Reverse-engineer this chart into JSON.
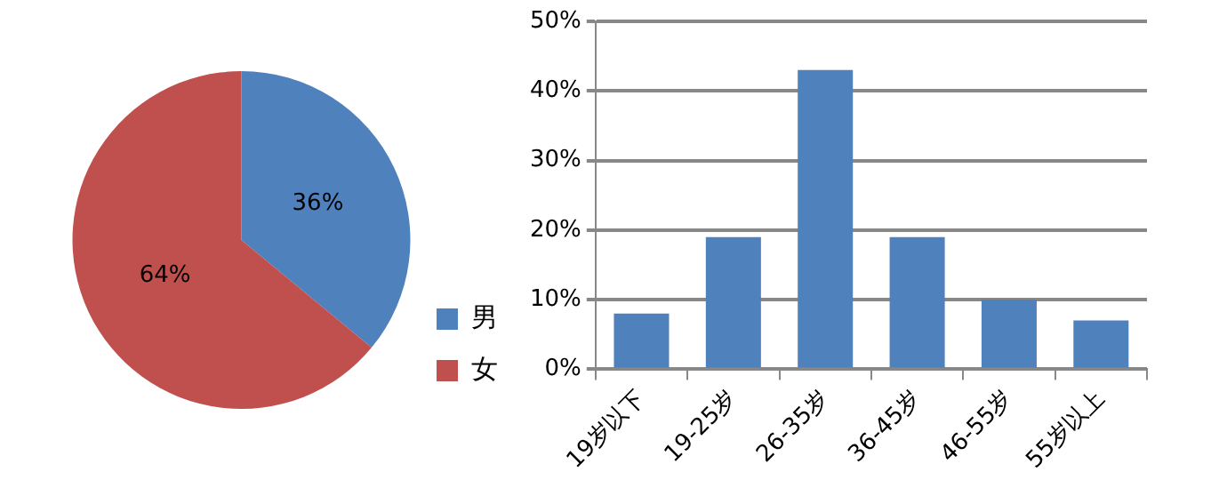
{
  "chart_data": [
    {
      "type": "pie",
      "categories": [
        "男",
        "女"
      ],
      "values": [
        36,
        64
      ],
      "colors": [
        "#4f81bd",
        "#c0504d"
      ],
      "value_labels": [
        "36%",
        "64%"
      ],
      "legend": "bottom right"
    },
    {
      "type": "bar",
      "categories": [
        "19岁以下",
        "19-25岁",
        "26-35岁",
        "36-45岁",
        "46-55岁",
        "55岁以上"
      ],
      "values": [
        8,
        19,
        43,
        19,
        10,
        7
      ],
      "color": "#4f81bd",
      "ylim": [
        0,
        50
      ],
      "yticks": [
        {
          "value": 0,
          "label": "0%"
        },
        {
          "value": 10,
          "label": "10%"
        },
        {
          "value": 20,
          "label": "20%"
        },
        {
          "value": 30,
          "label": "30%"
        },
        {
          "value": 40,
          "label": "40%"
        },
        {
          "value": 50,
          "label": "50%"
        }
      ],
      "grid": "y"
    }
  ]
}
